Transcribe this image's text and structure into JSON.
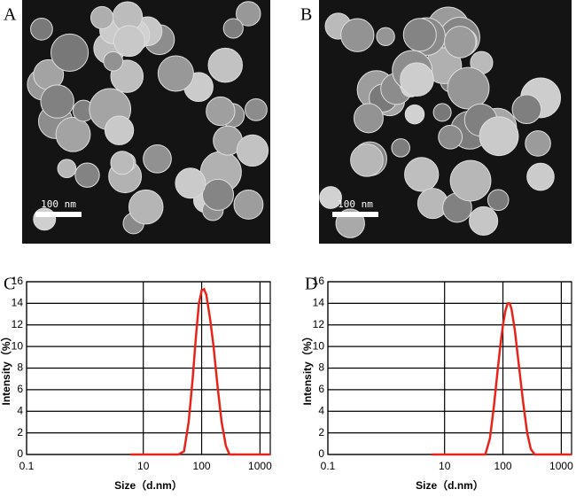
{
  "figure": {
    "images": [
      {
        "label": "A",
        "scale_bar": "100 nm"
      },
      {
        "label": "B",
        "scale_bar": "100 nm"
      }
    ]
  },
  "chart_data": [
    {
      "type": "line",
      "label": "C",
      "xlabel": "Size（d.nm）",
      "ylabel": "Intensity（%）",
      "x": [
        6,
        10,
        20,
        40,
        50,
        60,
        70,
        80,
        90,
        100,
        110,
        120,
        140,
        160,
        190,
        220,
        260,
        300,
        400,
        1000,
        1500
      ],
      "series": [
        {
          "color": "#e8231a",
          "values": [
            0,
            0,
            0,
            0,
            0.3,
            3,
            7,
            11,
            14,
            15.2,
            15.3,
            14.8,
            12.5,
            10,
            6,
            3,
            0.8,
            0,
            0,
            0,
            0
          ]
        }
      ],
      "xscale": "log",
      "xlim": [
        0.1,
        1500
      ],
      "xticks": [
        0.1,
        10,
        100,
        1000
      ],
      "ylim": [
        0,
        16
      ],
      "yticks": [
        0,
        2,
        4,
        6,
        8,
        10,
        12,
        14,
        16
      ],
      "grid": true
    },
    {
      "type": "line",
      "label": "D",
      "xlabel": "Size（d.nm）",
      "ylabel": "Intensity（%）",
      "x": [
        6,
        10,
        20,
        40,
        50,
        60,
        70,
        80,
        90,
        100,
        110,
        120,
        130,
        140,
        160,
        190,
        220,
        260,
        300,
        350,
        1000,
        1500
      ],
      "series": [
        {
          "color": "#e8231a",
          "values": [
            0,
            0,
            0,
            0,
            0,
            1.5,
            4.5,
            7.5,
            10,
            12,
            13.3,
            14,
            14,
            13.5,
            11.5,
            8,
            5,
            2,
            0.5,
            0,
            0,
            0
          ]
        }
      ],
      "xscale": "log",
      "xlim": [
        0.1,
        1500
      ],
      "xticks": [
        0.1,
        10,
        100,
        1000
      ],
      "ylim": [
        0,
        16
      ],
      "yticks": [
        0,
        2,
        4,
        6,
        8,
        10,
        12,
        14,
        16
      ],
      "grid": true
    }
  ]
}
